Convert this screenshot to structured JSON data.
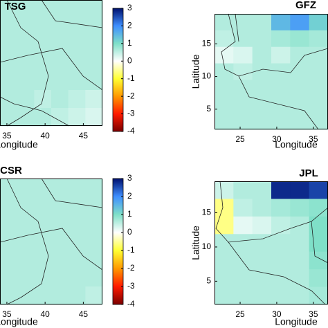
{
  "colormap": {
    "values": [
      -4,
      -3,
      -2,
      -1,
      0,
      1,
      2,
      3
    ],
    "colors": [
      "#7a0000",
      "#ff1a00",
      "#ff9900",
      "#ffff33",
      "#ffffff",
      "#7fe0c8",
      "#3f8fff",
      "#00106e"
    ]
  },
  "chart_data": [
    {
      "type": "heatmap",
      "title": "TSG",
      "xlabel": "Longitude",
      "xlim": [
        34.1,
        47.5
      ],
      "xticks": [
        35,
        40,
        45
      ],
      "values": [
        [
          0.6,
          0.6,
          0.6,
          0.6,
          0.6,
          0.6
        ],
        [
          0.6,
          0.6,
          0.6,
          0.6,
          0.6,
          0.6
        ],
        [
          0.6,
          0.6,
          0.6,
          0.6,
          0.6,
          0.6
        ],
        [
          0.6,
          0.6,
          0.6,
          0.6,
          0.6,
          0.6
        ],
        [
          0.6,
          0.6,
          0.6,
          0.6,
          0.6,
          0.6
        ],
        [
          0.6,
          0.6,
          0.5,
          0.6,
          0.5,
          0.4
        ],
        [
          0.6,
          0.6,
          0.6,
          0.5,
          0.4,
          0.3
        ]
      ],
      "colorbar": {
        "lim": [
          -4,
          3
        ],
        "ticks": [
          3,
          2,
          1,
          0,
          -1,
          -2,
          -3,
          -4
        ]
      }
    },
    {
      "type": "heatmap",
      "title": "GFZ",
      "xlabel": "Longitude",
      "ylabel": "Latitude",
      "xlim": [
        21.5,
        37
      ],
      "ylim": [
        1.9,
        19.6
      ],
      "xticks": [
        25,
        30,
        35
      ],
      "yticks": [
        5,
        10,
        15
      ],
      "values": [
        [
          0.6,
          0.6,
          0.6,
          1.5,
          1.8,
          1.2
        ],
        [
          0.5,
          0.6,
          0.6,
          0.7,
          0.8,
          0.7
        ],
        [
          0.2,
          0.3,
          0.6,
          0.4,
          0.6,
          0.6
        ],
        [
          0.6,
          0.5,
          0.6,
          0.6,
          0.6,
          0.6
        ],
        [
          0.6,
          0.6,
          0.6,
          0.6,
          0.6,
          0.6
        ],
        [
          0.6,
          0.6,
          0.6,
          0.6,
          0.6,
          0.6
        ],
        [
          0.6,
          0.6,
          0.6,
          0.6,
          0.6,
          0.6
        ]
      ]
    },
    {
      "type": "heatmap",
      "title": "CSR",
      "xlabel": "Longitude",
      "xlim": [
        34.1,
        47.5
      ],
      "xticks": [
        35,
        40,
        45
      ],
      "values": [
        [
          0.6,
          0.6,
          0.6,
          0.6,
          0.6,
          0.6
        ],
        [
          0.6,
          0.6,
          0.6,
          0.6,
          0.6,
          0.6
        ],
        [
          0.6,
          0.6,
          0.6,
          0.6,
          0.6,
          0.6
        ],
        [
          0.6,
          0.6,
          0.6,
          0.6,
          0.6,
          0.6
        ],
        [
          0.6,
          0.6,
          0.6,
          0.6,
          0.6,
          0.6
        ],
        [
          0.6,
          0.6,
          0.6,
          0.6,
          0.6,
          0.6
        ],
        [
          0.6,
          0.6,
          0.6,
          0.6,
          0.6,
          0.5
        ]
      ],
      "colorbar": {
        "lim": [
          -4,
          3
        ],
        "ticks": [
          3,
          2,
          1,
          0,
          -1,
          -2,
          -3,
          -4
        ]
      }
    },
    {
      "type": "heatmap",
      "title": "JPL",
      "xlabel": "Longitude",
      "ylabel": "Latitude",
      "xlim": [
        21.5,
        37
      ],
      "ylim": [
        1.6,
        19.6
      ],
      "xticks": [
        25,
        30,
        35
      ],
      "yticks": [
        5,
        10,
        15
      ],
      "values": [
        [
          0.4,
          0.6,
          0.6,
          2.8,
          2.8,
          2.6
        ],
        [
          -0.6,
          0.5,
          0.6,
          0.7,
          0.8,
          0.9
        ],
        [
          -0.6,
          0.2,
          0.3,
          0.5,
          0.6,
          1.0
        ],
        [
          0.6,
          0.6,
          0.6,
          0.6,
          0.6,
          1.0
        ],
        [
          0.6,
          0.6,
          0.6,
          0.6,
          0.6,
          0.9
        ],
        [
          0.6,
          0.6,
          0.6,
          0.6,
          0.6,
          0.8
        ],
        [
          0.6,
          0.6,
          0.6,
          0.6,
          0.6,
          0.7
        ]
      ]
    }
  ]
}
